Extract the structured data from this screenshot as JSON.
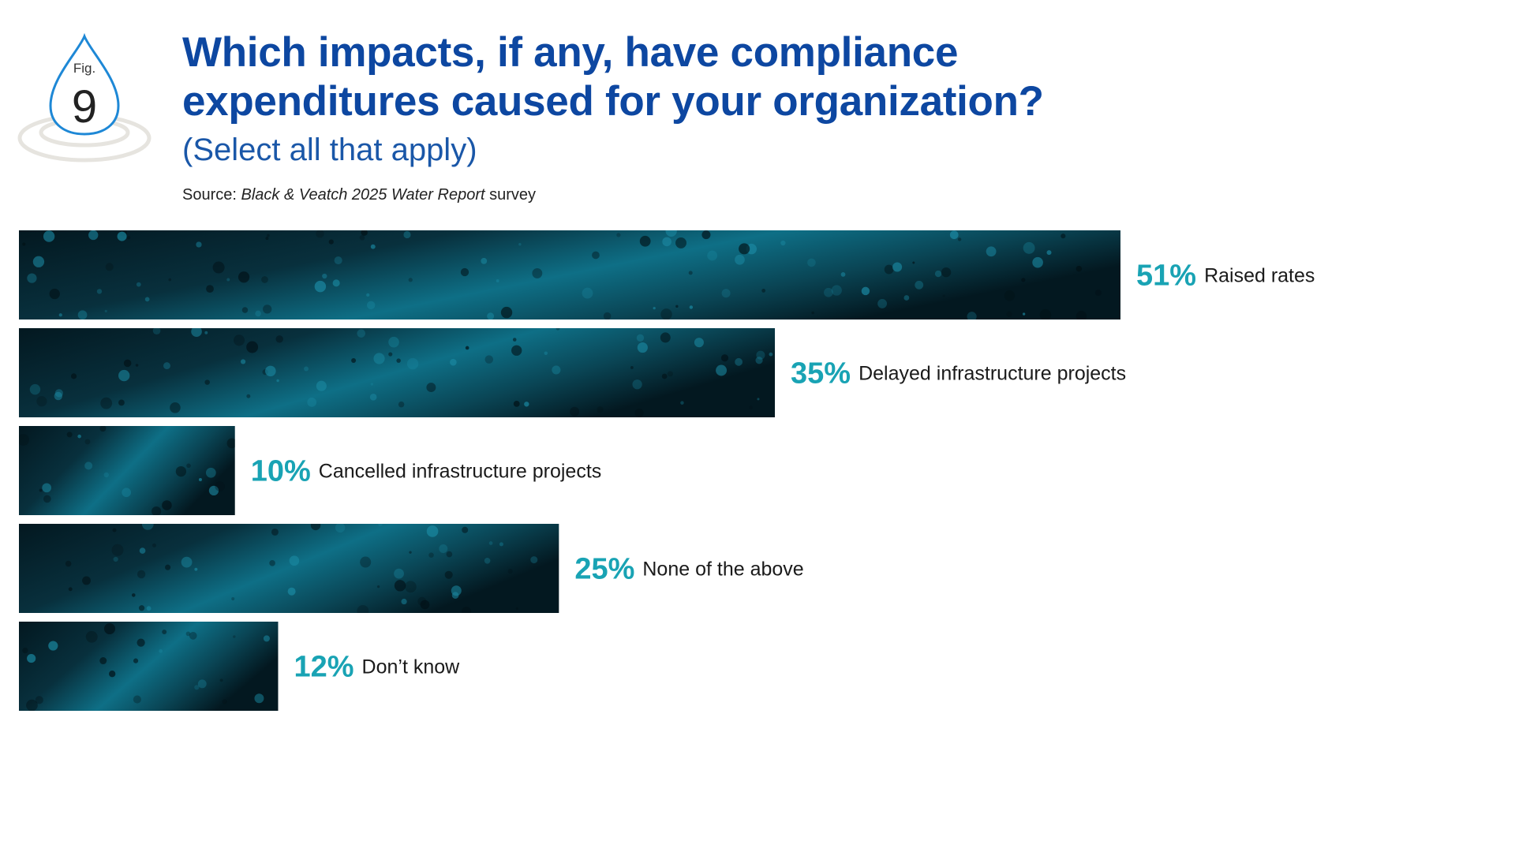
{
  "badge": {
    "fig_label": "Fig.",
    "fig_number": "9",
    "icon": "water-drop-icon"
  },
  "title": {
    "line1": "Which impacts, if any, have compliance",
    "line2": "expenditures caused for your organization?",
    "subtitle": "(Select all that apply)",
    "source_prefix": "Source: ",
    "source_italic": "Black & Veatch 2025 Water Report",
    "source_suffix": " survey"
  },
  "colors": {
    "title": "#0d47a1",
    "subtitle": "#1a57a8",
    "percent": "#19a3b4",
    "bar_dark": "#031820",
    "bar_light": "#0e6f86",
    "badge_stroke": "#1e88d6",
    "ripple": "#e6e4df"
  },
  "chart_data": {
    "type": "bar",
    "orientation": "horizontal",
    "categories": [
      "Raised rates",
      "Delayed infrastructure projects",
      "Cancelled infrastructure projects",
      "None of the above",
      "Don’t know"
    ],
    "values": [
      51,
      35,
      10,
      25,
      12
    ],
    "value_labels": [
      "51%",
      "35%",
      "10%",
      "25%",
      "12%"
    ],
    "unit": "%",
    "grid": false,
    "legend": "none"
  }
}
